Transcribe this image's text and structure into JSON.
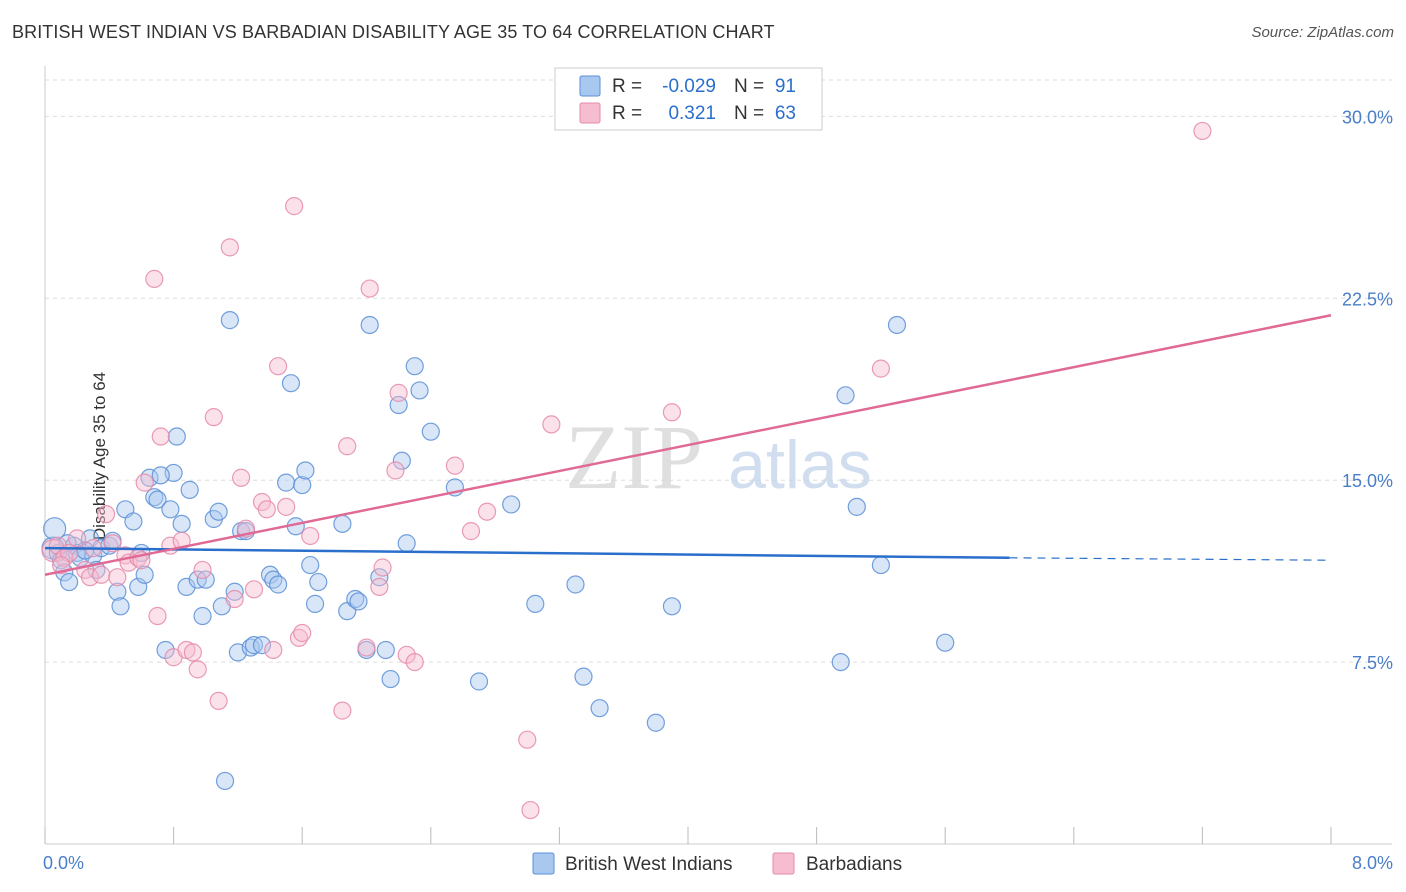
{
  "title": "BRITISH WEST INDIAN VS BARBADIAN DISABILITY AGE 35 TO 64 CORRELATION CHART",
  "source": "Source: ZipAtlas.com",
  "watermark": {
    "zip": "ZIP",
    "atlas": "atlas"
  },
  "colors": {
    "blue_fill": "#a8c8f0",
    "blue_stroke": "#5b8fd6",
    "blue_line": "#2b6fcc",
    "pink_fill": "#f6bcd0",
    "pink_stroke": "#e58aaa",
    "pink_line": "#e06a95",
    "axis_text": "#4a7ec9",
    "grid": "#dddddd"
  },
  "legend_top": {
    "r_label": "R =",
    "n_label": "N =",
    "rows": [
      {
        "r": "-0.029",
        "n": "91",
        "color": "blue"
      },
      {
        "r": "0.321",
        "n": "63",
        "color": "pink"
      }
    ]
  },
  "chart_data": {
    "type": "scatter",
    "title": "BRITISH WEST INDIAN VS BARBADIAN DISABILITY AGE 35 TO 64 CORRELATION CHART",
    "xlabel": "",
    "ylabel": "Disability Age 35 to 64",
    "xlim": [
      0,
      8
    ],
    "ylim": [
      0,
      31.5
    ],
    "x_tick_labels": [
      "0.0%",
      "8.0%"
    ],
    "y_ticks": [
      7.5,
      15.0,
      22.5,
      30.0
    ],
    "y_tick_labels": [
      "7.5%",
      "15.0%",
      "22.5%",
      "30.0%"
    ],
    "grid": true,
    "legend": [
      "British West Indians",
      "Barbadians"
    ],
    "series": [
      {
        "name": "British West Indians",
        "color": "blue",
        "trend": {
          "x0": 0,
          "y0": 12.2,
          "x1": 6.0,
          "y1": 11.8,
          "dash_to_x": 8.0,
          "dash_y": 11.7
        },
        "points": [
          [
            0.05,
            12.2
          ],
          [
            0.08,
            12.0
          ],
          [
            0.1,
            11.7
          ],
          [
            0.12,
            11.2
          ],
          [
            0.15,
            10.8
          ],
          [
            0.18,
            12.3
          ],
          [
            0.2,
            12.0
          ],
          [
            0.22,
            11.8
          ],
          [
            0.28,
            12.6
          ],
          [
            0.3,
            11.9
          ],
          [
            0.32,
            11.3
          ],
          [
            0.35,
            12.2
          ],
          [
            0.4,
            12.3
          ],
          [
            0.45,
            10.4
          ],
          [
            0.47,
            9.8
          ],
          [
            0.5,
            13.8
          ],
          [
            0.55,
            13.3
          ],
          [
            0.58,
            10.6
          ],
          [
            0.62,
            11.1
          ],
          [
            0.65,
            15.1
          ],
          [
            0.68,
            14.3
          ],
          [
            0.7,
            14.2
          ],
          [
            0.75,
            8.0
          ],
          [
            0.78,
            13.8
          ],
          [
            0.8,
            15.3
          ],
          [
            0.82,
            16.8
          ],
          [
            0.85,
            13.2
          ],
          [
            0.88,
            10.6
          ],
          [
            0.9,
            14.6
          ],
          [
            0.95,
            10.9
          ],
          [
            0.98,
            9.4
          ],
          [
            1.0,
            10.9
          ],
          [
            1.05,
            13.4
          ],
          [
            1.08,
            13.7
          ],
          [
            1.12,
            2.6
          ],
          [
            1.15,
            21.6
          ],
          [
            1.18,
            10.4
          ],
          [
            1.2,
            7.9
          ],
          [
            1.22,
            12.9
          ],
          [
            1.25,
            12.9
          ],
          [
            1.28,
            8.1
          ],
          [
            1.3,
            8.2
          ],
          [
            1.35,
            8.2
          ],
          [
            1.4,
            11.1
          ],
          [
            1.42,
            10.9
          ],
          [
            1.45,
            10.7
          ],
          [
            1.5,
            14.9
          ],
          [
            1.53,
            19.0
          ],
          [
            1.56,
            13.1
          ],
          [
            1.6,
            14.8
          ],
          [
            1.62,
            15.4
          ],
          [
            1.65,
            11.5
          ],
          [
            1.68,
            9.9
          ],
          [
            1.85,
            13.2
          ],
          [
            1.88,
            9.6
          ],
          [
            1.93,
            10.1
          ],
          [
            1.95,
            10.0
          ],
          [
            2.0,
            8.0
          ],
          [
            2.02,
            21.4
          ],
          [
            2.08,
            11.0
          ],
          [
            2.12,
            8.0
          ],
          [
            2.15,
            6.8
          ],
          [
            2.2,
            18.1
          ],
          [
            2.22,
            15.8
          ],
          [
            2.25,
            12.4
          ],
          [
            2.3,
            19.7
          ],
          [
            2.33,
            18.7
          ],
          [
            2.4,
            17.0
          ],
          [
            2.55,
            14.7
          ],
          [
            2.7,
            6.7
          ],
          [
            2.9,
            14.0
          ],
          [
            3.05,
            9.9
          ],
          [
            3.3,
            10.7
          ],
          [
            3.35,
            6.9
          ],
          [
            3.45,
            5.6
          ],
          [
            3.8,
            5.0
          ],
          [
            3.9,
            9.8
          ],
          [
            4.95,
            7.5
          ],
          [
            4.98,
            18.5
          ],
          [
            5.05,
            13.9
          ],
          [
            5.2,
            11.5
          ],
          [
            5.3,
            21.4
          ],
          [
            5.6,
            8.3
          ],
          [
            0.06,
            13.0
          ],
          [
            0.14,
            12.4
          ],
          [
            0.25,
            12.1
          ],
          [
            0.42,
            12.5
          ],
          [
            0.6,
            12.0
          ],
          [
            0.72,
            15.2
          ],
          [
            1.1,
            9.8
          ],
          [
            1.7,
            10.8
          ]
        ]
      },
      {
        "name": "Barbadians",
        "color": "pink",
        "trend": {
          "x0": 0,
          "y0": 11.1,
          "x1": 8.0,
          "y1": 21.8
        },
        "points": [
          [
            0.05,
            12.1
          ],
          [
            0.08,
            12.3
          ],
          [
            0.12,
            11.8
          ],
          [
            0.15,
            12.0
          ],
          [
            0.2,
            12.6
          ],
          [
            0.25,
            11.3
          ],
          [
            0.28,
            11.0
          ],
          [
            0.3,
            12.2
          ],
          [
            0.35,
            11.1
          ],
          [
            0.38,
            13.6
          ],
          [
            0.42,
            12.4
          ],
          [
            0.45,
            11.0
          ],
          [
            0.5,
            11.9
          ],
          [
            0.52,
            11.6
          ],
          [
            0.58,
            11.8
          ],
          [
            0.6,
            11.7
          ],
          [
            0.62,
            14.9
          ],
          [
            0.68,
            23.3
          ],
          [
            0.7,
            9.4
          ],
          [
            0.72,
            16.8
          ],
          [
            0.78,
            12.3
          ],
          [
            0.8,
            7.7
          ],
          [
            0.85,
            12.5
          ],
          [
            0.88,
            8.0
          ],
          [
            0.92,
            7.9
          ],
          [
            0.95,
            7.2
          ],
          [
            0.98,
            11.3
          ],
          [
            1.05,
            17.6
          ],
          [
            1.08,
            5.9
          ],
          [
            1.15,
            24.6
          ],
          [
            1.18,
            10.1
          ],
          [
            1.22,
            15.1
          ],
          [
            1.25,
            13.0
          ],
          [
            1.3,
            10.5
          ],
          [
            1.35,
            14.1
          ],
          [
            1.38,
            13.8
          ],
          [
            1.42,
            8.0
          ],
          [
            1.45,
            19.7
          ],
          [
            1.5,
            13.9
          ],
          [
            1.55,
            26.3
          ],
          [
            1.58,
            8.5
          ],
          [
            1.6,
            8.7
          ],
          [
            1.65,
            12.7
          ],
          [
            1.85,
            5.5
          ],
          [
            1.88,
            16.4
          ],
          [
            2.0,
            8.1
          ],
          [
            2.02,
            22.9
          ],
          [
            2.08,
            10.6
          ],
          [
            2.1,
            11.4
          ],
          [
            2.18,
            15.4
          ],
          [
            2.2,
            18.6
          ],
          [
            2.25,
            7.8
          ],
          [
            2.3,
            7.5
          ],
          [
            2.55,
            15.6
          ],
          [
            2.65,
            12.9
          ],
          [
            2.75,
            13.7
          ],
          [
            3.0,
            4.3
          ],
          [
            3.02,
            1.4
          ],
          [
            3.15,
            17.3
          ],
          [
            3.9,
            17.8
          ],
          [
            5.2,
            19.6
          ],
          [
            7.2,
            29.4
          ],
          [
            0.1,
            11.5
          ]
        ]
      }
    ]
  },
  "legend_bottom": [
    {
      "label": "British West Indians",
      "color": "blue"
    },
    {
      "label": "Barbadians",
      "color": "pink"
    }
  ]
}
